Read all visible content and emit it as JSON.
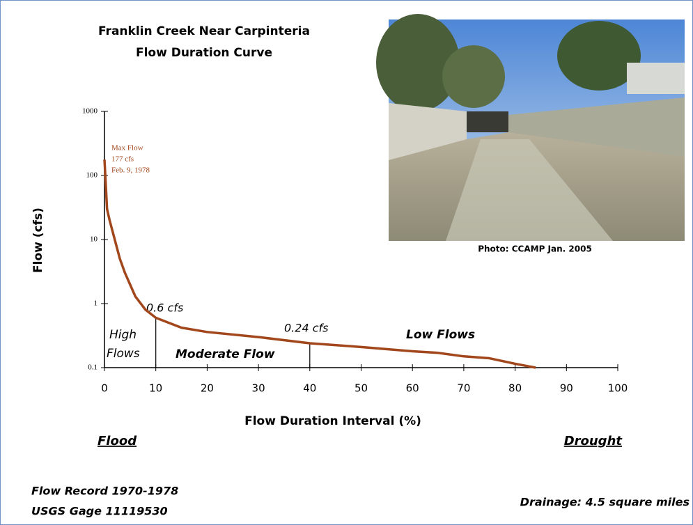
{
  "chart_data": {
    "type": "line",
    "title": "Franklin Creek Near Carpinteria",
    "subtitle": "Flow Duration Curve",
    "x_label": "Flow Duration Interval (%)",
    "y_label": "Flow (cfs)",
    "x": [
      0,
      0.5,
      1,
      2,
      3,
      4,
      6,
      8,
      10,
      15,
      20,
      30,
      40,
      50,
      60,
      65,
      70,
      75,
      80,
      84
    ],
    "values": [
      177,
      30,
      20,
      10,
      5,
      3,
      1.3,
      0.8,
      0.6,
      0.42,
      0.36,
      0.3,
      0.24,
      0.21,
      0.18,
      0.17,
      0.15,
      0.14,
      0.115,
      0.1
    ],
    "color": "#a2461c",
    "log_y": true,
    "xlim": [
      0,
      100
    ],
    "ylim": [
      0.1,
      1000
    ],
    "xticks": [
      0,
      10,
      20,
      30,
      40,
      50,
      60,
      70,
      80,
      90,
      100
    ],
    "yticks": [
      0.1,
      1,
      10,
      100,
      1000
    ],
    "dividers": [
      10,
      40
    ],
    "max_flow_note": [
      "Max Flow",
      "177 cfs",
      "Feb. 9, 1978"
    ],
    "point_labels": [
      "0.6 cfs",
      "0.24 cfs"
    ],
    "region_labels": [
      "High",
      "Flows",
      "Moderate Flow",
      "Low Flows"
    ],
    "x_extremes": [
      "Flood",
      "Drought"
    ]
  },
  "photo": {
    "caption": "Photo: CCAMP Jan. 2005"
  },
  "footer": {
    "left": [
      "Flow Record 1970-1978",
      "USGS Gage 11119530"
    ],
    "right": "Drainage: 4.5 square miles"
  }
}
